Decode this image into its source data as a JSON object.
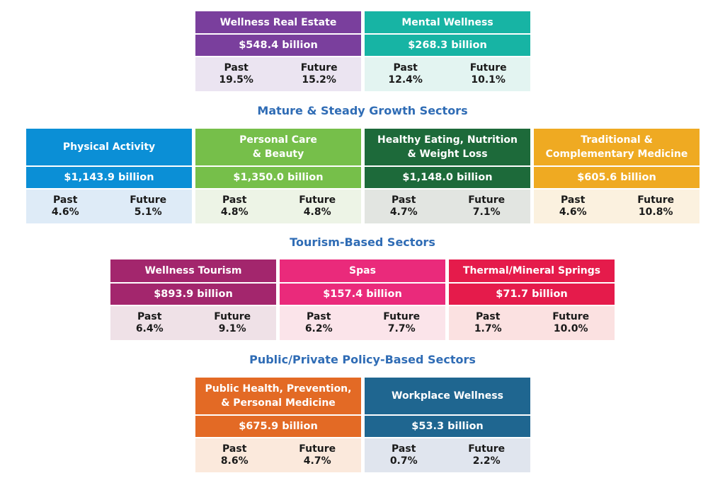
{
  "sections": [
    {
      "heading": "",
      "sectors": [
        {
          "title": "Wellness Real Estate",
          "value": "$548.4 billion",
          "past_label": "Past",
          "past": "19.5%",
          "future_label": "Future",
          "future": "15.2%",
          "color": "#7a3f9d",
          "light": "#ebe4f1"
        },
        {
          "title": "Mental Wellness",
          "value": "$268.3 billion",
          "past_label": "Past",
          "past": "12.4%",
          "future_label": "Future",
          "future": "10.1%",
          "color": "#17b4a4",
          "light": "#e3f4f1"
        }
      ]
    },
    {
      "heading": "Mature & Steady Growth Sectors",
      "sectors": [
        {
          "title": "Physical Activity",
          "value": "$1,143.9 billion",
          "past_label": "Past",
          "past": "4.6%",
          "future_label": "Future",
          "future": "5.1%",
          "color": "#0b8fd6",
          "light": "#deebf7"
        },
        {
          "title": "Personal Care\n& Beauty",
          "value": "$1,350.0 billion",
          "past_label": "Past",
          "past": "4.8%",
          "future_label": "Future",
          "future": "4.8%",
          "color": "#76bf4a",
          "light": "#edf4e6"
        },
        {
          "title": "Healthy Eating, Nutrition\n& Weight Loss",
          "value": "$1,148.0 billion",
          "past_label": "Past",
          "past": "4.7%",
          "future_label": "Future",
          "future": "7.1%",
          "color": "#1d6a3a",
          "light": "#e2e5e1"
        },
        {
          "title": "Traditional &\nComplementary Medicine",
          "value": "$605.6 billion",
          "past_label": "Past",
          "past": "4.6%",
          "future_label": "Future",
          "future": "10.8%",
          "color": "#efaa22",
          "light": "#fbf1df"
        }
      ]
    },
    {
      "heading": "Tourism-Based Sectors",
      "sectors": [
        {
          "title": "Wellness Tourism",
          "value": "$893.9 billion",
          "past_label": "Past",
          "past": "6.4%",
          "future_label": "Future",
          "future": "9.1%",
          "color": "#a3266d",
          "light": "#efe1e7"
        },
        {
          "title": "Spas",
          "value": "$157.4 billion",
          "past_label": "Past",
          "past": "6.2%",
          "future_label": "Future",
          "future": "7.7%",
          "color": "#ea2a7b",
          "light": "#fbe4ea"
        },
        {
          "title": "Thermal/Mineral Springs",
          "value": "$71.7 billion",
          "past_label": "Past",
          "past": "1.7%",
          "future_label": "Future",
          "future": "10.0%",
          "color": "#e51b4b",
          "light": "#fbe1e1"
        }
      ]
    },
    {
      "heading": "Public/Private Policy-Based Sectors",
      "sectors": [
        {
          "title": "Public Health, Prevention,\n& Personal Medicine",
          "value": "$675.9 billion",
          "past_label": "Past",
          "past": "8.6%",
          "future_label": "Future",
          "future": "4.7%",
          "color": "#e36a25",
          "light": "#fbe9dc"
        },
        {
          "title": "Workplace Wellness",
          "value": "$53.3 billion",
          "past_label": "Past",
          "past": "0.7%",
          "future_label": "Future",
          "future": "2.2%",
          "color": "#1f6690",
          "light": "#e0e5ee"
        }
      ]
    }
  ]
}
